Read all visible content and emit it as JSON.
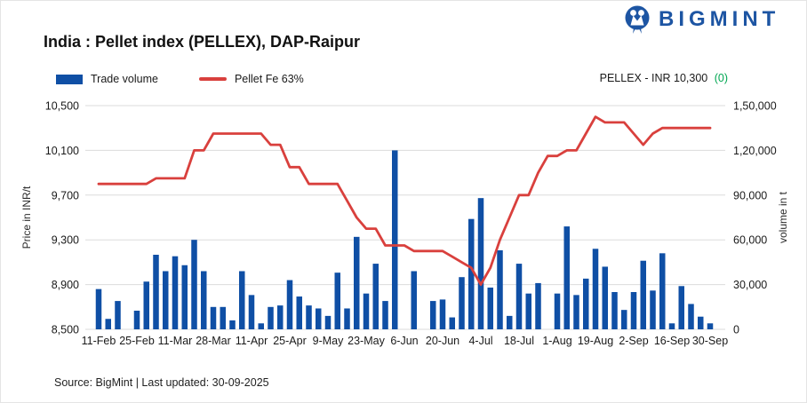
{
  "header": {
    "brand": "BIGMINT",
    "title": "India : Pellet index (PELLEX), DAP-Raipur",
    "ticker_text": "PELLEX - INR 10,300",
    "ticker_change": "(0)"
  },
  "legend": [
    {
      "label": "Trade volume",
      "type": "bar",
      "color": "#0F4FA5"
    },
    {
      "label": "Pellet Fe 63%",
      "type": "line",
      "color": "#D9403D"
    }
  ],
  "footer": {
    "text": "Source: BigMint | Last updated: 30-09-2025"
  },
  "colors": {
    "bar_blue": "#0F4FA5",
    "line_red": "#D9403D",
    "brand_blue": "#1D55A3",
    "positive_green": "#00A651",
    "grid": "#DBDBDB",
    "text": "#1A1A1A"
  },
  "chart_data": {
    "type": "combo",
    "x_tick_labels": [
      "11-Feb",
      "25-Feb",
      "11-Mar",
      "28-Mar",
      "11-Apr",
      "25-Apr",
      "9-May",
      "23-May",
      "6-Jun",
      "20-Jun",
      "4-Jul",
      "18-Jul",
      "1-Aug",
      "19-Aug",
      "2-Sep",
      "16-Sep",
      "30-Sep"
    ],
    "x_tick_every": 4,
    "x_point_count": 65,
    "left_axis": {
      "title": "Price in INR/t",
      "min": 8500,
      "max": 10500,
      "ticks": [
        "10,500",
        "10,100",
        "9,700",
        "9,300",
        "8,900",
        "8,500"
      ]
    },
    "right_axis": {
      "title": "volume in t",
      "min": 0,
      "max": 150000,
      "ticks": [
        "1,50,000",
        "1,20,000",
        "90,000",
        "60,000",
        "30,000",
        "0"
      ]
    },
    "grid": "horizontal-only",
    "legend_position": "top-left",
    "series": [
      {
        "name": "Trade volume",
        "type": "bar",
        "axis": "right",
        "color": "#0F4FA5",
        "values": [
          27000,
          7000,
          19000,
          0,
          12500,
          32000,
          50000,
          39000,
          49000,
          43000,
          60000,
          39000,
          15000,
          15000,
          6000,
          39000,
          23000,
          4000,
          15000,
          16000,
          33000,
          22000,
          16000,
          14000,
          9000,
          38000,
          14000,
          62000,
          24000,
          44000,
          19000,
          120000,
          0,
          39000,
          0,
          19000,
          20000,
          8000,
          35000,
          74000,
          88000,
          28000,
          53000,
          9000,
          44000,
          24000,
          31000,
          0,
          24000,
          69000,
          23000,
          34000,
          54000,
          42000,
          25000,
          13000,
          25000,
          46000,
          26000,
          51000,
          4000,
          29000,
          17000,
          8500,
          4000
        ]
      },
      {
        "name": "Pellet Fe 63%",
        "type": "line",
        "axis": "left",
        "color": "#D9403D",
        "values": [
          9800,
          9800,
          9800,
          9800,
          9800,
          9800,
          9850,
          9850,
          9850,
          9850,
          10100,
          10100,
          10250,
          10250,
          10250,
          10250,
          10250,
          10250,
          10150,
          10150,
          9950,
          9950,
          9800,
          9800,
          9800,
          9800,
          9650,
          9500,
          9400,
          9400,
          9250,
          9250,
          9250,
          9200,
          9200,
          9200,
          9200,
          9150,
          9100,
          9050,
          8900,
          9050,
          9300,
          9500,
          9700,
          9700,
          9900,
          10050,
          10050,
          10100,
          10100,
          10250,
          10400,
          10350,
          10350,
          10350,
          10250,
          10150,
          10250,
          10300,
          10300,
          10300,
          10300,
          10300,
          10300
        ]
      }
    ]
  }
}
